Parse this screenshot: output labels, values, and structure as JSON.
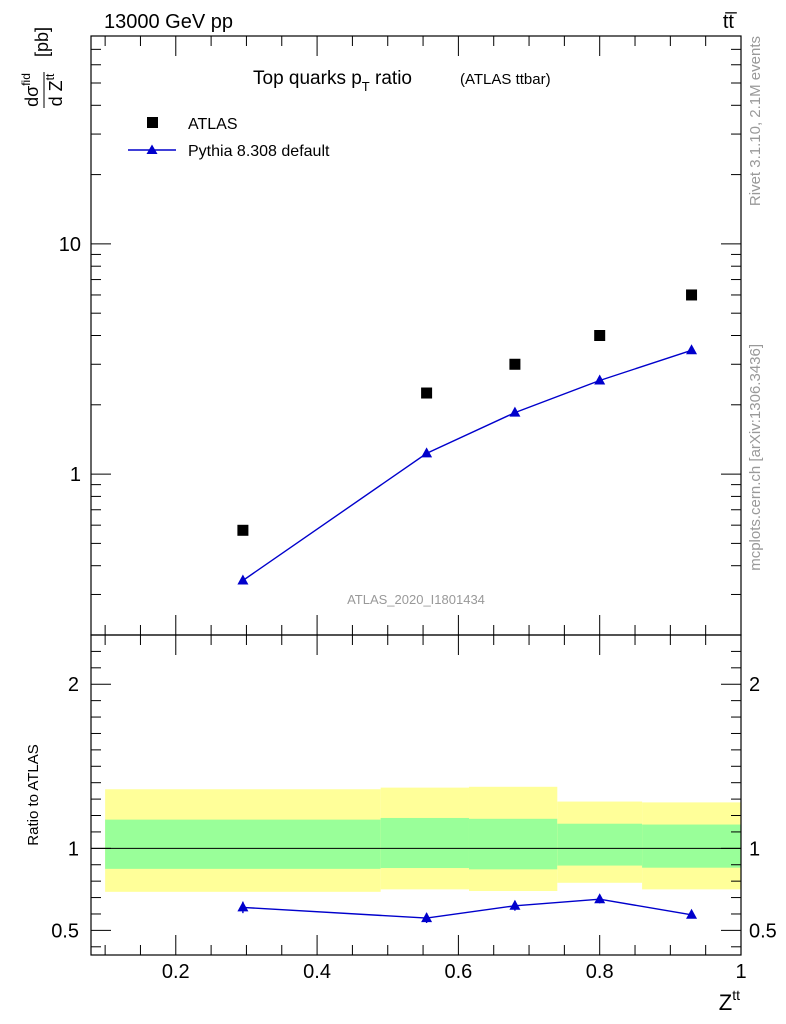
{
  "header": {
    "left": "13000 GeV pp",
    "right": "tt̅"
  },
  "side_text": {
    "rivet": "Rivet 3.1.10,  2.1M events",
    "mcplots": "mcplots.cern.ch [arXiv:1306.3436]"
  },
  "watermark": "ATLAS_2020_I1801434",
  "chart_data": [
    {
      "type": "scatter",
      "title": "Top quarks p",
      "title_sub": "T",
      "title_tail": " ratio",
      "title_note": "(ATLAS ttbar)",
      "ylabel": "dσ^fid / d Z^tt [pb]",
      "ylabel_parts": {
        "num": "dσ",
        "num_sup": "fid",
        "den": "d Z",
        "den_sup": "tt",
        "unit": "[pb]"
      },
      "yscale": "log",
      "ylim": [
        0.2,
        80
      ],
      "yticks": [
        {
          "v": 1,
          "label": "1"
        },
        {
          "v": 10,
          "label": "10"
        }
      ],
      "xlim": [
        0.08,
        1.0
      ],
      "legend": {
        "placement": "top-left",
        "entries": [
          {
            "label": "ATLAS",
            "marker": "square",
            "color": "#000000"
          },
          {
            "label": "Pythia 8.308 default",
            "marker": "triangle",
            "color": "#0000cc"
          }
        ]
      },
      "series": [
        {
          "name": "ATLAS",
          "color": "#000000",
          "x": [
            0.295,
            0.555,
            0.68,
            0.8,
            0.93
          ],
          "values": [
            0.57,
            2.25,
            3.0,
            4.0,
            6.0
          ]
        },
        {
          "name": "Pythia 8.308 default",
          "color": "#0000cc",
          "x": [
            0.295,
            0.555,
            0.68,
            0.8,
            0.93
          ],
          "values": [
            0.345,
            1.23,
            1.85,
            2.55,
            3.45
          ]
        }
      ]
    },
    {
      "type": "line",
      "ylabel": "Ratio to ATLAS",
      "xlabel": "Z",
      "xlabel_sup": "tt",
      "xlim": [
        0.08,
        1.0
      ],
      "ylim": [
        0.35,
        2.3
      ],
      "xticks": [
        {
          "v": 0.2,
          "label": "0.2"
        },
        {
          "v": 0.4,
          "label": "0.4"
        },
        {
          "v": 0.6,
          "label": "0.6"
        },
        {
          "v": 0.8,
          "label": "0.8"
        },
        {
          "v": 1.0,
          "label": "1"
        }
      ],
      "yticks": [
        {
          "v": 0.5,
          "label": "0.5"
        },
        {
          "v": 1,
          "label": "1"
        },
        {
          "v": 2,
          "label": "2"
        }
      ],
      "bands": {
        "yellow": "#ffff99",
        "green": "#99ff99",
        "bins": [
          {
            "x0": 0.1,
            "x1": 0.49,
            "y_lo": 0.735,
            "y_hi": 1.36,
            "g_lo": 0.875,
            "g_hi": 1.175
          },
          {
            "x0": 0.49,
            "x1": 0.615,
            "y_lo": 0.75,
            "y_hi": 1.37,
            "g_lo": 0.88,
            "g_hi": 1.185
          },
          {
            "x0": 0.615,
            "x1": 0.74,
            "y_lo": 0.74,
            "y_hi": 1.375,
            "g_lo": 0.872,
            "g_hi": 1.18
          },
          {
            "x0": 0.74,
            "x1": 0.86,
            "y_lo": 0.79,
            "y_hi": 1.285,
            "g_lo": 0.895,
            "g_hi": 1.15
          },
          {
            "x0": 0.86,
            "x1": 1.0,
            "y_lo": 0.75,
            "y_hi": 1.28,
            "g_lo": 0.882,
            "g_hi": 1.145
          }
        ]
      },
      "series": [
        {
          "name": "Pythia 8.308 default",
          "color": "#0000cc",
          "x": [
            0.295,
            0.555,
            0.68,
            0.8,
            0.93
          ],
          "values": [
            0.64,
            0.575,
            0.65,
            0.69,
            0.595
          ],
          "errors": [
            0.035,
            0.03,
            0.03,
            0.025,
            0.015
          ]
        }
      ]
    }
  ]
}
